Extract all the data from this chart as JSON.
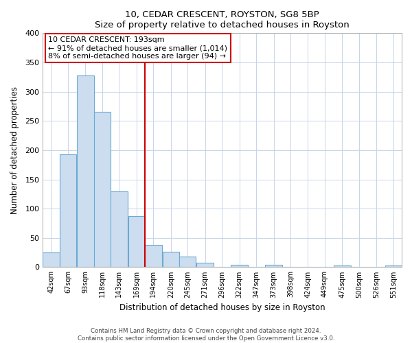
{
  "title": "10, CEDAR CRESCENT, ROYSTON, SG8 5BP",
  "subtitle": "Size of property relative to detached houses in Royston",
  "xlabel": "Distribution of detached houses by size in Royston",
  "ylabel": "Number of detached properties",
  "bin_labels": [
    "42sqm",
    "67sqm",
    "93sqm",
    "118sqm",
    "143sqm",
    "169sqm",
    "194sqm",
    "220sqm",
    "245sqm",
    "271sqm",
    "296sqm",
    "322sqm",
    "347sqm",
    "373sqm",
    "398sqm",
    "424sqm",
    "449sqm",
    "475sqm",
    "500sqm",
    "526sqm",
    "551sqm"
  ],
  "bar_values": [
    25,
    193,
    328,
    265,
    130,
    87,
    38,
    26,
    18,
    8,
    0,
    4,
    0,
    4,
    0,
    0,
    0,
    3,
    0,
    0,
    3
  ],
  "bar_color": "#ccddf0",
  "bar_edge_color": "#6aaad4",
  "property_line_label": "10 CEDAR CRESCENT: 193sqm",
  "annotation_line1": "← 91% of detached houses are smaller (1,014)",
  "annotation_line2": "8% of semi-detached houses are larger (94) →",
  "annotation_box_color": "#ffffff",
  "annotation_box_edge": "#cc0000",
  "vline_color": "#cc0000",
  "ylim": [
    0,
    400
  ],
  "yticks": [
    0,
    50,
    100,
    150,
    200,
    250,
    300,
    350,
    400
  ],
  "footer1": "Contains HM Land Registry data © Crown copyright and database right 2024.",
  "footer2": "Contains public sector information licensed under the Open Government Licence v3.0.",
  "bg_color": "#ffffff",
  "grid_color": "#c8d4e8",
  "bin_width": 25,
  "bin_starts": [
    42,
    67,
    93,
    118,
    143,
    169,
    194,
    220,
    245,
    271,
    296,
    322,
    347,
    373,
    398,
    424,
    449,
    475,
    500,
    526,
    551
  ],
  "vline_x": 194
}
